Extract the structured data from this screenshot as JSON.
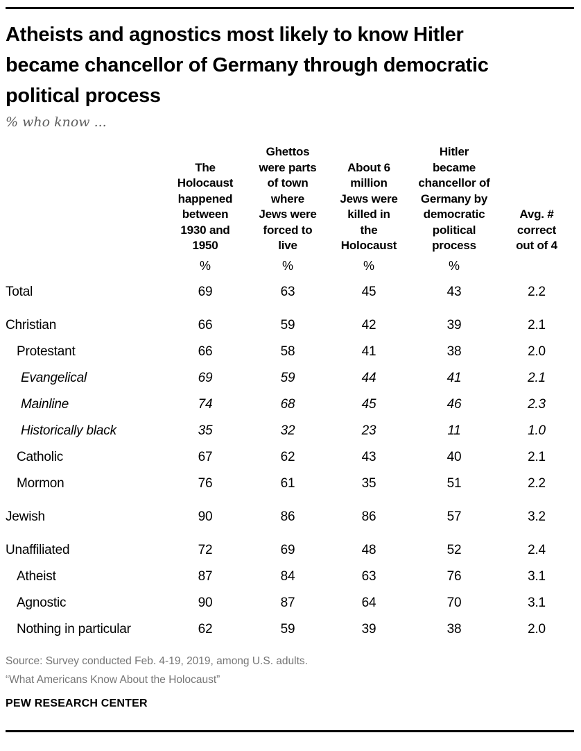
{
  "chart_data": {
    "type": "table",
    "title": "Atheists and agnostics most likely to know Hitler\nbecame chancellor of Germany through democratic\npolitical process",
    "subtitle": "% who know ...",
    "columns": [
      {
        "header": "The\nHolocaust\nhappened\nbetween\n1930 and\n1950",
        "unit": "%"
      },
      {
        "header": "Ghettos\nwere parts\nof town\nwhere\nJews were\nforced to\nlive",
        "unit": "%"
      },
      {
        "header": "About 6\nmillion\nJews were\nkilled in\nthe\nHolocaust",
        "unit": "%"
      },
      {
        "header": "Hitler\nbecame\nchancellor of\nGermany by\ndemocratic\npolitical\nprocess",
        "unit": "%"
      },
      {
        "header": "Avg. #\ncorrect\nout of 4",
        "unit": ""
      }
    ],
    "rows": [
      {
        "label": "Total",
        "indent": 0,
        "italic": false,
        "gap_before": false,
        "values": [
          "69",
          "63",
          "45",
          "43",
          "2.2"
        ]
      },
      {
        "label": "Christian",
        "indent": 0,
        "italic": false,
        "gap_before": true,
        "values": [
          "66",
          "59",
          "42",
          "39",
          "2.1"
        ]
      },
      {
        "label": "Protestant",
        "indent": 1,
        "italic": false,
        "gap_before": false,
        "values": [
          "66",
          "58",
          "41",
          "38",
          "2.0"
        ]
      },
      {
        "label": "Evangelical",
        "indent": 2,
        "italic": true,
        "gap_before": false,
        "values": [
          "69",
          "59",
          "44",
          "41",
          "2.1"
        ]
      },
      {
        "label": "Mainline",
        "indent": 2,
        "italic": true,
        "gap_before": false,
        "values": [
          "74",
          "68",
          "45",
          "46",
          "2.3"
        ]
      },
      {
        "label": "Historically black",
        "indent": 2,
        "italic": true,
        "gap_before": false,
        "values": [
          "35",
          "32",
          "23",
          "11",
          "1.0"
        ]
      },
      {
        "label": "Catholic",
        "indent": 1,
        "italic": false,
        "gap_before": false,
        "values": [
          "67",
          "62",
          "43",
          "40",
          "2.1"
        ]
      },
      {
        "label": "Mormon",
        "indent": 1,
        "italic": false,
        "gap_before": false,
        "values": [
          "76",
          "61",
          "35",
          "51",
          "2.2"
        ]
      },
      {
        "label": "Jewish",
        "indent": 0,
        "italic": false,
        "gap_before": true,
        "values": [
          "90",
          "86",
          "86",
          "57",
          "3.2"
        ]
      },
      {
        "label": "Unaffiliated",
        "indent": 0,
        "italic": false,
        "gap_before": true,
        "values": [
          "72",
          "69",
          "48",
          "52",
          "2.4"
        ]
      },
      {
        "label": "Atheist",
        "indent": 1,
        "italic": false,
        "gap_before": false,
        "values": [
          "87",
          "84",
          "63",
          "76",
          "3.1"
        ]
      },
      {
        "label": "Agnostic",
        "indent": 1,
        "italic": false,
        "gap_before": false,
        "values": [
          "90",
          "87",
          "64",
          "70",
          "3.1"
        ]
      },
      {
        "label": "Nothing in particular",
        "indent": 1,
        "italic": false,
        "gap_before": false,
        "values": [
          "62",
          "59",
          "39",
          "38",
          "2.0"
        ]
      }
    ]
  },
  "footer": {
    "source_line1": "Source: Survey conducted Feb. 4-19, 2019, among U.S. adults.",
    "source_line2": "“What Americans Know About the Holocaust”",
    "brand": "PEW RESEARCH CENTER"
  },
  "colors": {
    "text": "#000000",
    "muted_gray": "#757575",
    "subtitle_gray": "#5e5e5e",
    "rule": "#000000",
    "background": "#ffffff"
  }
}
